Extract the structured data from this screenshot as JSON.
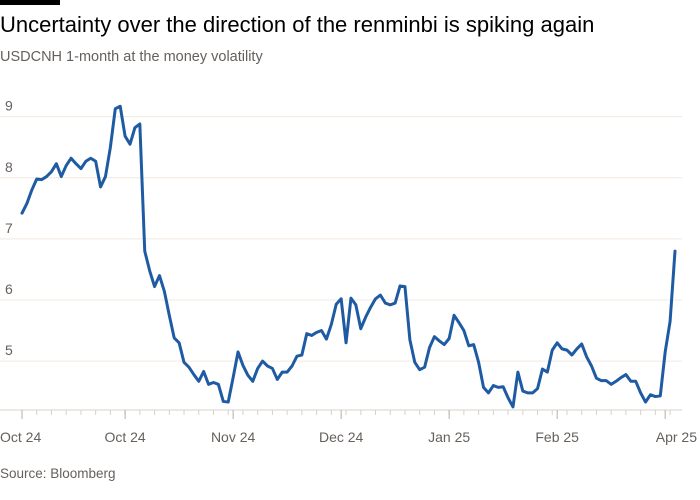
{
  "header": {
    "title": "Uncertainty over the direction of the renminbi is spiking again",
    "subtitle": "USDCNH 1-month at the money volatility"
  },
  "footer": {
    "source": "Source: Bloomberg"
  },
  "colors": {
    "line": "#1f5ba3",
    "grid": "#f2e8df",
    "axis": "#d9d0c8",
    "text": "#66605c"
  },
  "chart_data": {
    "type": "line",
    "title": "Uncertainty over the direction of the renminbi is spiking again",
    "subtitle": "USDCNH 1-month at the money volatility",
    "xlabel": "",
    "ylabel": "",
    "ylim": [
      4.2,
      9.6
    ],
    "y_ticks": [
      5,
      6,
      7,
      8,
      9
    ],
    "x_ticks": [
      {
        "label": "Oct 24",
        "index": 0
      },
      {
        "label": "Oct 24",
        "index": 21
      },
      {
        "label": "Nov 24",
        "index": 43
      },
      {
        "label": "Dec 24",
        "index": 65
      },
      {
        "label": "Jan 25",
        "index": 87
      },
      {
        "label": "Feb 25",
        "index": 109
      },
      {
        "label": "Apr 25",
        "index": 131
      }
    ],
    "grid": true,
    "legend": "none",
    "series": [
      {
        "values": [
          7.42,
          7.58,
          7.8,
          7.98,
          7.97,
          8.02,
          8.1,
          8.23,
          8.02,
          8.2,
          8.32,
          8.23,
          8.15,
          8.27,
          8.32,
          8.27,
          7.85,
          8.02,
          8.5,
          9.13,
          9.17,
          8.68,
          8.55,
          8.82,
          8.88,
          6.8,
          6.48,
          6.22,
          6.4,
          6.14,
          5.75,
          5.38,
          5.3,
          4.98,
          4.9,
          4.78,
          4.67,
          4.83,
          4.62,
          4.65,
          4.62,
          4.34,
          4.33,
          4.73,
          5.15,
          4.93,
          4.77,
          4.67,
          4.88,
          5.0,
          4.92,
          4.88,
          4.7,
          4.82,
          4.82,
          4.92,
          5.08,
          5.1,
          5.45,
          5.42,
          5.47,
          5.5,
          5.36,
          5.6,
          5.93,
          6.02,
          5.3,
          6.03,
          5.92,
          5.53,
          5.72,
          5.88,
          6.02,
          6.08,
          5.95,
          5.92,
          5.95,
          6.23,
          6.22,
          5.35,
          4.98,
          4.86,
          4.9,
          5.22,
          5.4,
          5.33,
          5.27,
          5.37,
          5.75,
          5.63,
          5.5,
          5.25,
          5.27,
          4.98,
          4.57,
          4.48,
          4.6,
          4.57,
          4.58,
          4.4,
          4.25,
          4.82,
          4.51,
          4.48,
          4.48,
          4.55,
          4.87,
          4.82,
          5.18,
          5.3,
          5.2,
          5.18,
          5.1,
          5.2,
          5.28,
          5.07,
          4.92,
          4.72,
          4.68,
          4.68,
          4.62,
          4.67,
          4.73,
          4.78,
          4.67,
          4.67,
          4.48,
          4.33,
          4.45,
          4.42,
          4.43,
          5.15,
          5.65,
          6.8
        ]
      }
    ]
  }
}
